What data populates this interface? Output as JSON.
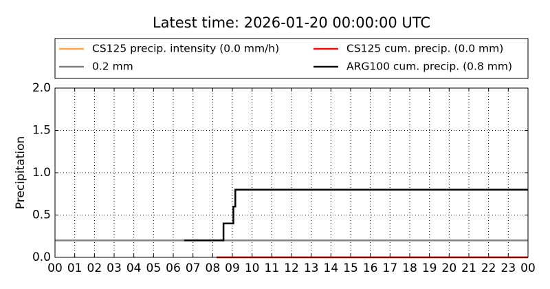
{
  "chart_data": {
    "type": "line",
    "title": "Latest time: 2026-01-20 00:00:00 UTC",
    "y_label": "Precipitation",
    "xlim": [
      0,
      24
    ],
    "ylim": [
      0,
      2
    ],
    "xticks": [
      {
        "value": 0,
        "label": "00"
      },
      {
        "value": 1,
        "label": "01"
      },
      {
        "value": 2,
        "label": "02"
      },
      {
        "value": 3,
        "label": "03"
      },
      {
        "value": 4,
        "label": "04"
      },
      {
        "value": 5,
        "label": "05"
      },
      {
        "value": 6,
        "label": "06"
      },
      {
        "value": 7,
        "label": "07"
      },
      {
        "value": 8,
        "label": "08"
      },
      {
        "value": 9,
        "label": "09"
      },
      {
        "value": 10,
        "label": "10"
      },
      {
        "value": 11,
        "label": "11"
      },
      {
        "value": 12,
        "label": "12"
      },
      {
        "value": 13,
        "label": "13"
      },
      {
        "value": 14,
        "label": "14"
      },
      {
        "value": 15,
        "label": "15"
      },
      {
        "value": 16,
        "label": "16"
      },
      {
        "value": 17,
        "label": "17"
      },
      {
        "value": 18,
        "label": "18"
      },
      {
        "value": 19,
        "label": "19"
      },
      {
        "value": 20,
        "label": "20"
      },
      {
        "value": 21,
        "label": "21"
      },
      {
        "value": 22,
        "label": "22"
      },
      {
        "value": 23,
        "label": "23"
      },
      {
        "value": 24,
        "label": "00"
      }
    ],
    "yticks": [
      {
        "value": 0,
        "label": "0.0"
      },
      {
        "value": 0.5,
        "label": "0.5"
      },
      {
        "value": 1,
        "label": "1.0"
      },
      {
        "value": 1.5,
        "label": "1.5"
      },
      {
        "value": 2,
        "label": "2.0"
      }
    ],
    "grid": true,
    "series": [
      {
        "name": "CS125 precip. intensity (0.0 mm/h)",
        "color": "#ffa54f",
        "x": [
          8.2,
          24
        ],
        "values": [
          0,
          0
        ]
      },
      {
        "name": "0.2 mm",
        "color": "#808080",
        "x": [
          0,
          24
        ],
        "values": [
          0.2,
          0.2
        ]
      },
      {
        "name": "CS125 cum. precip. (0.0 mm)",
        "color": "#e01010",
        "x": [
          8.2,
          24
        ],
        "values": [
          0,
          0
        ]
      },
      {
        "name": "ARG100 cum. precip. (0.8 mm)",
        "color": "#000000",
        "x": [
          6.55,
          8.55,
          8.55,
          9.05,
          9.05,
          9.15,
          9.15,
          24
        ],
        "values": [
          0.2,
          0.2,
          0.4,
          0.4,
          0.6,
          0.6,
          0.8,
          0.8
        ]
      }
    ]
  }
}
